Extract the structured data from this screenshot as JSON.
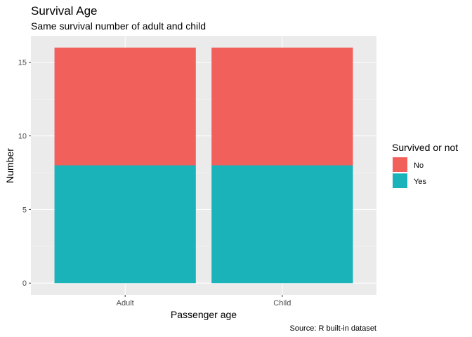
{
  "chart_data": {
    "type": "bar",
    "stacked": true,
    "title": "Survival Age",
    "subtitle": "Same survival number of adult and child",
    "xlabel": "Passenger age",
    "ylabel": "Number",
    "caption": "Source: R built-in dataset",
    "categories": [
      "Adult",
      "Child"
    ],
    "series": [
      {
        "name": "Yes",
        "values": [
          8,
          8
        ],
        "color": "#1ab3ba"
      },
      {
        "name": "No",
        "values": [
          8,
          8
        ],
        "color": "#f2605c"
      }
    ],
    "ylim": [
      -0.8,
      16.8
    ],
    "yticks": [
      0,
      5,
      10,
      15
    ],
    "grid": true,
    "legend": {
      "title": "Survived or not",
      "position": "right",
      "items": [
        {
          "label": "No",
          "color": "#f2605c"
        },
        {
          "label": "Yes",
          "color": "#1ab3ba"
        }
      ]
    }
  }
}
